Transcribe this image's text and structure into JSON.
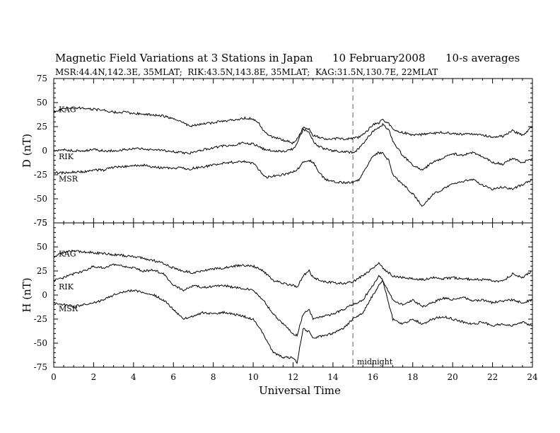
{
  "title": "Magnetic Field Variations at 3 Stations in Japan",
  "date": "10 February2008",
  "averaging": "10-s averages",
  "stations_line": "MSR:44.4N,142.3E, 35MLAT;  RIK:43.5N,143.8E, 35MLAT;  KAG:31.5N,130.7E, 22MLAT",
  "xlabel": "Universal Time",
  "midnight_label": "midnight",
  "chart_data": [
    {
      "type": "line",
      "panel": "D",
      "ylabel": "D (nT)",
      "xlim": [
        0,
        24
      ],
      "ylim": [
        -75,
        75
      ],
      "xticks": [
        0,
        2,
        4,
        6,
        8,
        10,
        12,
        14,
        16,
        18,
        20,
        22,
        24
      ],
      "xtick_labels": [
        "0",
        "2",
        "4",
        "6",
        "8",
        "10",
        "12",
        "14",
        "16",
        "18",
        "20",
        "22",
        "24"
      ],
      "yticks": [
        -75,
        -50,
        -25,
        0,
        25,
        50,
        75
      ],
      "ytick_labels": [
        "-75",
        "-50",
        "-25",
        "0",
        "25",
        "50",
        "75"
      ],
      "marker_line_x": 15,
      "series": [
        {
          "name": "KAG",
          "x": [
            0,
            0.5,
            1,
            1.5,
            2,
            2.5,
            3,
            3.5,
            4,
            4.5,
            5,
            5.5,
            6,
            6.5,
            6.8,
            7,
            7.5,
            8,
            8.5,
            9,
            9.5,
            10,
            10.3,
            10.6,
            11,
            11.5,
            12,
            12.2,
            12.5,
            12.8,
            13,
            13.3,
            13.6,
            14,
            14.5,
            15,
            15.3,
            15.6,
            16,
            16.3,
            16.5,
            16.8,
            17,
            17.5,
            18,
            18.5,
            19,
            19.5,
            20,
            20.5,
            21,
            21.5,
            22,
            22.5,
            23,
            23.5,
            24
          ],
          "y": [
            40,
            44,
            45,
            44,
            43,
            42,
            40,
            40,
            39,
            38,
            37,
            36,
            33,
            30,
            25,
            26,
            28,
            29,
            31,
            32,
            34,
            33,
            28,
            18,
            14,
            11,
            8,
            12,
            24,
            22,
            16,
            14,
            12,
            13,
            12,
            13,
            14,
            18,
            27,
            29,
            32,
            28,
            22,
            19,
            16,
            17,
            18,
            19,
            18,
            17,
            17,
            16,
            14,
            15,
            21,
            16,
            25
          ]
        },
        {
          "name": "RIK",
          "x": [
            0,
            0.5,
            1,
            1.5,
            2,
            2.5,
            3,
            3.5,
            4,
            4.5,
            5,
            5.5,
            6,
            6.5,
            6.8,
            7,
            7.5,
            8,
            8.5,
            9,
            9.5,
            10,
            10.3,
            10.6,
            11,
            11.5,
            12,
            12.2,
            12.5,
            12.8,
            13,
            13.3,
            13.6,
            14,
            14.5,
            15,
            15.3,
            15.6,
            16,
            16.3,
            16.5,
            16.8,
            17,
            17.5,
            18,
            18.5,
            19,
            19.5,
            20,
            20.5,
            21,
            21.5,
            22,
            22.5,
            23,
            23.5,
            24
          ],
          "y": [
            0,
            1,
            0,
            0,
            1,
            0,
            0,
            1,
            2,
            2,
            1,
            0,
            -1,
            -2,
            -3,
            -1,
            1,
            3,
            5,
            6,
            8,
            7,
            4,
            1,
            0,
            -1,
            2,
            8,
            22,
            20,
            10,
            4,
            2,
            0,
            -1,
            -2,
            2,
            10,
            20,
            24,
            27,
            22,
            10,
            -5,
            -15,
            -20,
            -12,
            -8,
            -3,
            -5,
            -2,
            -6,
            -12,
            -14,
            -8,
            -12,
            -8
          ]
        },
        {
          "name": "MSR",
          "x": [
            0,
            0.5,
            1,
            1.5,
            2,
            2.5,
            3,
            3.5,
            4,
            4.5,
            5,
            5.5,
            6,
            6.5,
            6.8,
            7,
            7.5,
            8,
            8.5,
            9,
            9.5,
            10,
            10.3,
            10.6,
            11,
            11.5,
            12,
            12.2,
            12.5,
            12.8,
            13,
            13.3,
            13.6,
            14,
            14.5,
            15,
            15.3,
            15.6,
            16,
            16.3,
            16.5,
            16.8,
            17,
            17.5,
            18,
            18.5,
            19,
            19.5,
            20,
            20.5,
            21,
            21.5,
            22,
            22.5,
            23,
            23.5,
            24
          ],
          "y": [
            -23,
            -23,
            -22,
            -22,
            -20,
            -20,
            -17,
            -17,
            -15,
            -15,
            -17,
            -18,
            -18,
            -18,
            -20,
            -18,
            -17,
            -15,
            -13,
            -12,
            -11,
            -13,
            -20,
            -28,
            -26,
            -25,
            -22,
            -20,
            -12,
            -10,
            -12,
            -22,
            -30,
            -32,
            -33,
            -33,
            -30,
            -20,
            -5,
            -2,
            -3,
            -10,
            -25,
            -35,
            -45,
            -58,
            -45,
            -40,
            -35,
            -32,
            -30,
            -36,
            -40,
            -38,
            -40,
            -35,
            -30
          ]
        }
      ]
    },
    {
      "type": "line",
      "panel": "H",
      "ylabel": "H (nT)",
      "xlim": [
        0,
        24
      ],
      "ylim": [
        -75,
        75
      ],
      "xticks": [
        0,
        2,
        4,
        6,
        8,
        10,
        12,
        14,
        16,
        18,
        20,
        22,
        24
      ],
      "xtick_labels": [
        "0",
        "2",
        "4",
        "6",
        "8",
        "10",
        "12",
        "14",
        "16",
        "18",
        "20",
        "22",
        "24"
      ],
      "yticks": [
        -75,
        -50,
        -25,
        0,
        25,
        50,
        75
      ],
      "ytick_labels": [
        "-75",
        "-50",
        "-25",
        "0",
        "25",
        "50",
        "75"
      ],
      "marker_line_x": 15,
      "series": [
        {
          "name": "KAG",
          "x": [
            0,
            0.5,
            1,
            1.5,
            2,
            2.5,
            3,
            3.5,
            4,
            4.5,
            5,
            5.5,
            6,
            6.5,
            7,
            7.5,
            8,
            8.5,
            9,
            9.5,
            10,
            10.5,
            11,
            11.5,
            12,
            12.2,
            12.5,
            12.8,
            13,
            13.5,
            14,
            14.5,
            15,
            15.5,
            16,
            16.3,
            16.5,
            17,
            17.5,
            18,
            18.5,
            19,
            19.5,
            20,
            20.5,
            21,
            21.5,
            22,
            22.5,
            23,
            23.5,
            24
          ],
          "y": [
            40,
            44,
            46,
            45,
            44,
            43,
            42,
            41,
            40,
            38,
            36,
            33,
            28,
            25,
            23,
            25,
            27,
            28,
            30,
            31,
            30,
            25,
            15,
            12,
            10,
            8,
            20,
            25,
            18,
            14,
            13,
            12,
            14,
            20,
            28,
            34,
            28,
            20,
            18,
            17,
            16,
            18,
            17,
            18,
            17,
            16,
            16,
            15,
            14,
            22,
            18,
            25
          ]
        },
        {
          "name": "RIK",
          "x": [
            0,
            0.5,
            1,
            1.5,
            2,
            2.5,
            3,
            3.5,
            4,
            4.5,
            5,
            5.5,
            6,
            6.5,
            7,
            7.5,
            8,
            8.5,
            9,
            9.5,
            10,
            10.5,
            11,
            11.5,
            12,
            12.2,
            12.5,
            12.8,
            13,
            13.5,
            14,
            14.5,
            15,
            15.5,
            16,
            16.3,
            16.5,
            17,
            17.5,
            18,
            18.5,
            19,
            19.5,
            20,
            20.5,
            21,
            21.5,
            22,
            22.5,
            23,
            23.5,
            24
          ],
          "y": [
            15,
            18,
            22,
            25,
            30,
            28,
            32,
            30,
            28,
            25,
            26,
            22,
            10,
            5,
            10,
            8,
            9,
            10,
            8,
            7,
            5,
            -5,
            -20,
            -30,
            -40,
            -42,
            -20,
            -15,
            -25,
            -22,
            -20,
            -15,
            -10,
            -5,
            10,
            20,
            15,
            -5,
            -10,
            -5,
            -12,
            -8,
            -3,
            -5,
            -2,
            -6,
            -5,
            -8,
            -6,
            -5,
            -8,
            -5
          ]
        },
        {
          "name": "MSR",
          "x": [
            0,
            0.5,
            1,
            1.5,
            2,
            2.5,
            3,
            3.5,
            4,
            4.5,
            5,
            5.5,
            6,
            6.5,
            7,
            7.5,
            8,
            8.5,
            9,
            9.5,
            10,
            10.5,
            11,
            11.5,
            12,
            12.2,
            12.5,
            12.8,
            13,
            13.5,
            14,
            14.5,
            15,
            15.5,
            16,
            16.3,
            16.5,
            17,
            17.5,
            18,
            18.5,
            19,
            19.5,
            20,
            20.5,
            21,
            21.5,
            22,
            22.5,
            23,
            23.5,
            24
          ],
          "y": [
            -8,
            -10,
            -12,
            -10,
            -8,
            -5,
            0,
            3,
            5,
            3,
            0,
            -5,
            -15,
            -25,
            -22,
            -18,
            -20,
            -18,
            -20,
            -22,
            -25,
            -40,
            -60,
            -65,
            -65,
            -70,
            -35,
            -38,
            -45,
            -42,
            -40,
            -35,
            -25,
            -18,
            0,
            10,
            15,
            -25,
            -30,
            -25,
            -30,
            -25,
            -22,
            -25,
            -28,
            -30,
            -28,
            -32,
            -30,
            -32,
            -28,
            -32
          ]
        }
      ]
    }
  ]
}
